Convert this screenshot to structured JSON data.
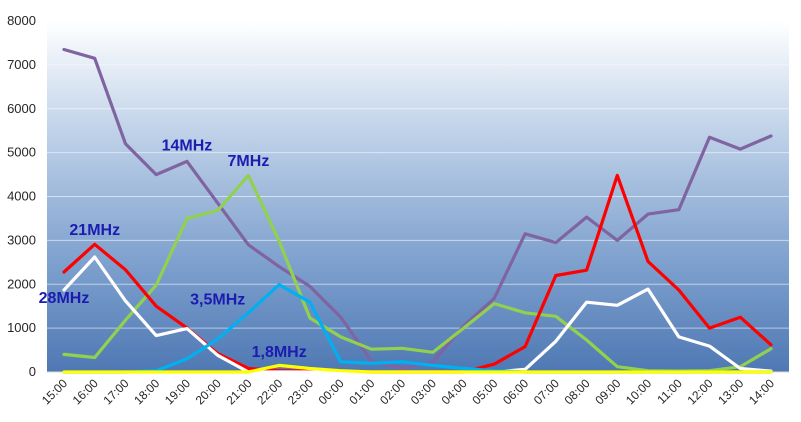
{
  "chart_data": {
    "type": "line",
    "title": "",
    "xlabel": "",
    "ylabel": "",
    "ylim": [
      0,
      8000
    ],
    "y_ticks": [
      "0",
      "1000",
      "2000",
      "3000",
      "4000",
      "5000",
      "6000",
      "7000",
      "8000"
    ],
    "grid": true,
    "legend": "none",
    "background": "vertical gradient white to blue",
    "categories": [
      "15:00",
      "16:00",
      "17:00",
      "18:00",
      "19:00",
      "20:00",
      "21:00",
      "22:00",
      "23:00",
      "00:00",
      "01:00",
      "02:00",
      "03:00",
      "04:00",
      "05:00",
      "06:00",
      "07:00",
      "08:00",
      "09:00",
      "10:00",
      "11:00",
      "12:00",
      "13:00",
      "14:00"
    ],
    "series": [
      {
        "name": "14MHz",
        "color": "#8064a2",
        "values": [
          7350,
          7150,
          5200,
          4500,
          4800,
          3850,
          2900,
          2400,
          1950,
          1250,
          250,
          80,
          230,
          1050,
          1680,
          3150,
          2950,
          3530,
          3000,
          3600,
          3700,
          5350,
          5080,
          5380
        ]
      },
      {
        "name": "7MHz",
        "color": "#92d050",
        "values": [
          400,
          330,
          1180,
          1980,
          3500,
          3680,
          4480,
          2980,
          1230,
          800,
          520,
          540,
          450,
          1000,
          1560,
          1350,
          1270,
          730,
          120,
          30,
          20,
          30,
          120,
          530
        ]
      },
      {
        "name": "21MHz",
        "color": "#ff0000",
        "values": [
          2280,
          2910,
          2330,
          1500,
          1000,
          420,
          80,
          30,
          20,
          10,
          0,
          0,
          0,
          0,
          180,
          580,
          2200,
          2320,
          4480,
          2520,
          1870,
          1000,
          1250,
          620
        ]
      },
      {
        "name": "28MHz",
        "color": "#ffffff",
        "values": [
          1870,
          2620,
          1620,
          830,
          990,
          380,
          0,
          0,
          0,
          0,
          0,
          0,
          0,
          0,
          0,
          60,
          700,
          1590,
          1520,
          1890,
          800,
          590,
          80,
          20
        ]
      },
      {
        "name": "3,5MHz",
        "color": "#00b0f0",
        "values": [
          0,
          0,
          0,
          30,
          300,
          750,
          1350,
          1990,
          1590,
          230,
          200,
          230,
          150,
          80,
          30,
          0,
          0,
          0,
          0,
          0,
          0,
          0,
          0,
          0
        ]
      },
      {
        "name": "1,8MHz",
        "color": "#ffff00",
        "values": [
          0,
          0,
          0,
          0,
          0,
          0,
          0,
          150,
          80,
          30,
          0,
          0,
          0,
          0,
          0,
          0,
          0,
          0,
          0,
          0,
          0,
          0,
          0,
          0
        ]
      }
    ],
    "annotations": [
      {
        "text": "14MHz",
        "series": "14MHz",
        "x": "19:00",
        "y": 5050
      },
      {
        "text": "7MHz",
        "series": "7MHz",
        "x": "21:00",
        "y": 4700
      },
      {
        "text": "21MHz",
        "series": "21MHz",
        "x": "16:00",
        "y": 3120
      },
      {
        "text": "28MHz",
        "series": "28MHz",
        "x": "15:00",
        "y": 1570
      },
      {
        "text": "3,5MHz",
        "series": "3,5MHz",
        "x": "20:00",
        "y": 1540
      },
      {
        "text": "1,8MHz",
        "series": "1,8MHz",
        "x": "22:00",
        "y": 340
      }
    ]
  }
}
